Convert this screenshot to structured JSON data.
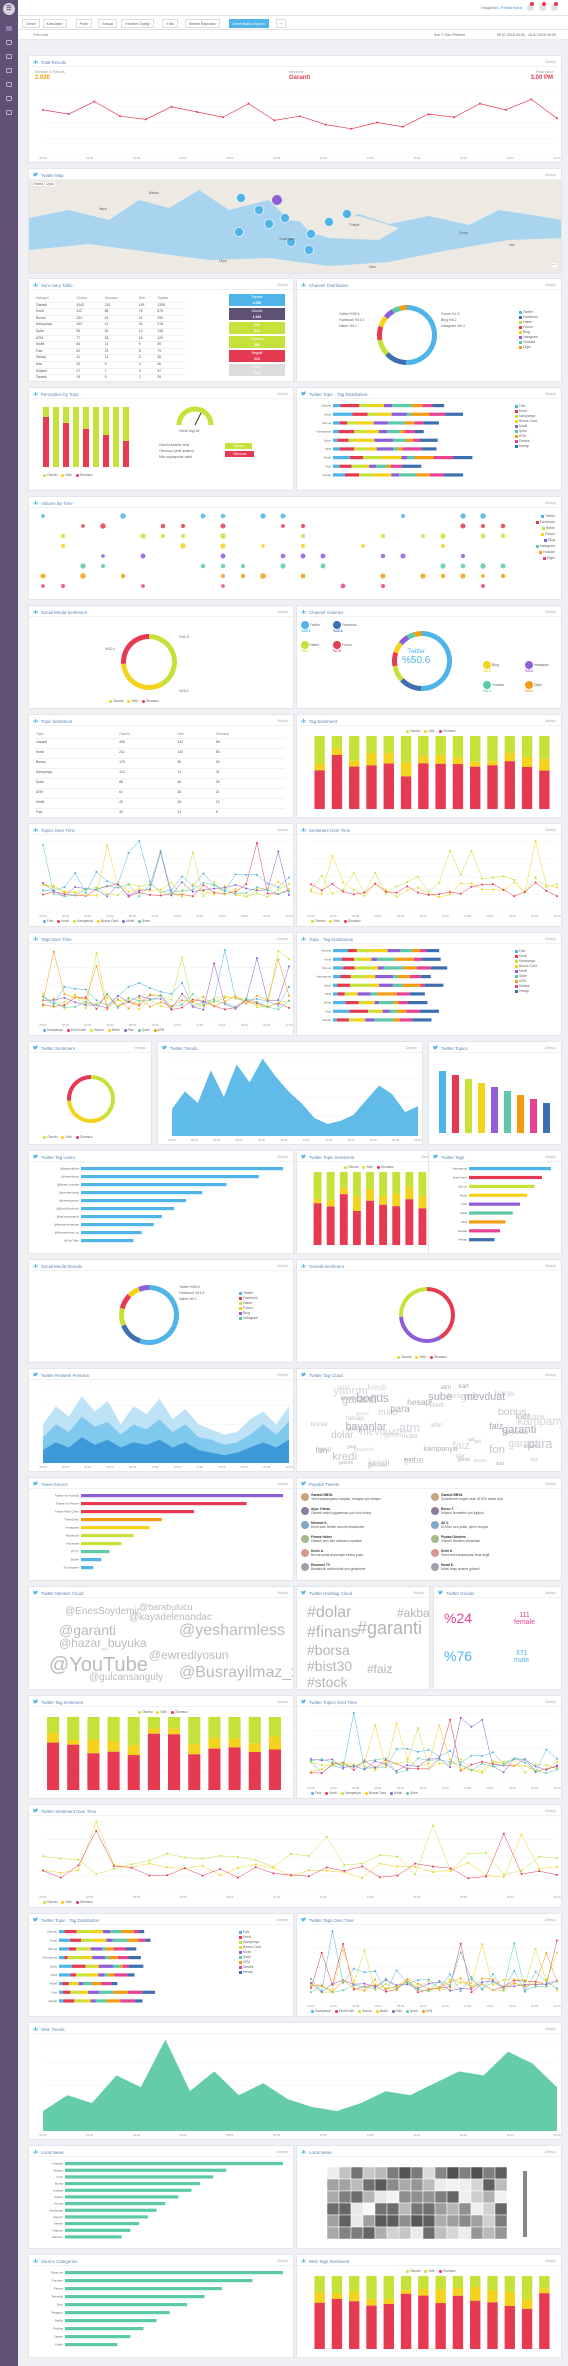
{
  "colors": {
    "accent": "#4fb4e7",
    "kpi": "#f39c12",
    "red": "#e53a52",
    "lime": "#c6e23a",
    "yellow": "#f4d31c",
    "purple": "#8e5ed8",
    "teal": "#5cc9a7"
  },
  "topbar": {
    "user_prefix": "Hoşgeldin,",
    "user_name": "Ferhat Kara"
  },
  "tabs": [
    "Genel",
    "Karşılaştır",
    "Profil",
    "Sosyal",
    "Yönetim Grafiği",
    "Yıllık",
    "Sistem Raporları",
    "Genel Bakış Raporu"
  ],
  "filterbar": {
    "left": "Filter Add",
    "mid": "Son 7 Gün Filtreleri",
    "right": "09.07.2016 00:00 - 16.07.2016 00:00"
  },
  "panels": {
    "total_results": {
      "title": "Total Results",
      "action": "Detaylı"
    },
    "twitter_map": {
      "title": "Twitter Map",
      "action": "Detaylı"
    },
    "summary_table": {
      "title": "Sum mary Table",
      "action": "Detaylı"
    },
    "channel_distribution": {
      "title": "Channel Distribution",
      "action": "Detaylı"
    },
    "perception_topic": {
      "title": "Perception by Topic",
      "action": "Detaylı"
    },
    "twitter_topic_tag": {
      "title": "Twitter Topic - Tag Distribution",
      "action": "Detaylı"
    },
    "volume_time": {
      "title": "Volume By Time",
      "action": "Detaylı"
    },
    "social_sentiment": {
      "title": "Social Media Sentiment",
      "action": "Detaylı"
    },
    "channel_volumes": {
      "title": "Channel Volumes",
      "action": "Detaylı"
    },
    "topic_sentiment": {
      "title": "Topic Sentiment",
      "action": "Detaylı"
    },
    "tag_sentiment": {
      "title": "Tag Sentiment",
      "action": "Detaylı"
    },
    "topics_over_time": {
      "title": "Topics Over Time",
      "action": "Detaylı"
    },
    "sentiment_over_time": {
      "title": "Sentiment Over Time",
      "action": "Detaylı"
    },
    "tags_over_time": {
      "title": "Tags Over Time",
      "action": "Detaylı"
    },
    "topic_tag_dist": {
      "title": "Topic - Tag Distribution",
      "action": "Detaylı"
    },
    "twitter_sentiment": {
      "title": "Twitter Sentiment",
      "action": "Detaylı"
    },
    "twitter_trends": {
      "title": "Twitter Trends",
      "action": "Detaylı"
    },
    "twitter_topics": {
      "title": "Twitter Topics",
      "action": "Detaylı"
    },
    "twitter_tag_users": {
      "title": "Twitter Tag Users",
      "action": "Detaylı"
    },
    "twitter_topic_sentiment": {
      "title": "Twitter Topic Sentiment",
      "action": "Detaylı"
    },
    "twitter_tags": {
      "title": "Twitter Tags",
      "action": "Detaylı"
    },
    "social_results": {
      "title": "Social Media Results",
      "action": "Detaylı"
    },
    "overall_sentiment": {
      "title": "Overall Sentiment",
      "action": "Detaylı"
    },
    "twitter_persona": {
      "title": "Twitter Retweet Persona",
      "action": "Detaylı"
    },
    "twitter_tag_cloud": {
      "title": "Twitter Tag Cloud",
      "action": "Detaylı"
    },
    "tweet_source": {
      "title": "Tweet Source",
      "action": "Detaylı"
    },
    "popular_tweets": {
      "title": "Popular Tweets",
      "action": "Detaylı"
    },
    "twitter_mention_cloud": {
      "title": "Twitter Mention Cloud",
      "action": "Detaylı"
    },
    "twitter_hashtag_cloud": {
      "title": "Twitter Hashtag Cloud",
      "action": "Detaylı"
    },
    "twitter_gender": {
      "title": "Twitter Gender",
      "action": "Detaylı"
    },
    "twitter_tag_sentiment": {
      "title": "Twitter Tag Sentiment",
      "action": "Detaylı"
    },
    "twitter_topics_over_time": {
      "title": "Twitter Topics Over Time",
      "action": "Detaylı"
    },
    "twitter_sentiment_over_time": {
      "title": "Twitter Sentiment Over Time",
      "action": "Detaylı"
    },
    "twitter_topic_tag_dist": {
      "title": "Twitter Topic - Tag Distribution",
      "action": "Detaylı"
    },
    "twitter_tags_over_time": {
      "title": "Twitter Tags Over Time",
      "action": "Detaylı"
    },
    "web_trends": {
      "title": "Web Trends",
      "action": "Detaylı"
    },
    "local_news": {
      "title": "Local News",
      "action": "Detaylı"
    },
    "local_news_map": {
      "title": "Local News",
      "action": "Detaylı"
    },
    "source_categories": {
      "title": "Source Categories",
      "action": "Detaylı"
    },
    "web_tags_sentiment": {
      "title": "Web Tags Sentiment",
      "action": "Detaylı"
    }
  },
  "kpi": {
    "l1": "Number of Results",
    "v1": "2.020",
    "l2": "Keyword",
    "v2": "Garanti",
    "l3": "Peak Hour",
    "v3": "3.00 PM"
  },
  "map": {
    "modes": [
      "Harita",
      "Uydu"
    ],
    "labels": [
      "Balkan",
      "Türkiye",
      "İtalya",
      "Yunanistan",
      "Libya",
      "Mısır",
      "Suriye",
      "Irak"
    ]
  },
  "summary": {
    "headers": [
      "Kategori",
      "Olumlu",
      "Olumsuz",
      "Nötr",
      "Toplam"
    ],
    "rows": [
      [
        "Garanti",
        "1043",
        "210",
        "145",
        "1398"
      ],
      [
        "Kredi",
        "412",
        "88",
        "76",
        "576"
      ],
      [
        "Bonus",
        "234",
        "44",
        "21",
        "299"
      ],
      [
        "Kampanya",
        "163",
        "21",
        "34",
        "218"
      ],
      [
        "Şube",
        "96",
        "30",
        "12",
        "138"
      ],
      [
        "ATM",
        "77",
        "25",
        "18",
        "120"
      ],
      [
        "Mobil",
        "66",
        "14",
        "9",
        "89"
      ],
      [
        "Faiz",
        "52",
        "19",
        "8",
        "79"
      ],
      [
        "Hesap",
        "41",
        "11",
        "6",
        "58"
      ],
      [
        "Kart",
        "33",
        "9",
        "4",
        "46"
      ],
      [
        "Müşteri",
        "27",
        "7",
        "3",
        "37"
      ],
      [
        "Destek",
        "19",
        "5",
        "2",
        "26"
      ]
    ],
    "boxes": [
      {
        "t": "Toplam",
        "v": "2.020",
        "c": "#4fb4e7"
      },
      {
        "t": "Olumlu",
        "v": "1.043",
        "c": "#5e5174"
      },
      {
        "t": "Nötr",
        "v": "612",
        "c": "#c6e23a"
      },
      {
        "t": "Olumsuz",
        "v": "365",
        "c": "#c6e23a"
      },
      {
        "t": "Negatif",
        "v": "210",
        "c": "#e53a52"
      },
      {
        "t": "Oran",
        "v": "%18",
        "c": "#ddd"
      }
    ]
  },
  "channel": {
    "legend": [
      "Twitter",
      "Facebook",
      "Haber",
      "Forum",
      "Blog",
      "Instagram",
      "Youtube",
      "Diğer"
    ],
    "left_labels": [
      "Twitter %50.6",
      "Facebook %12.4",
      "Haber %9.1"
    ],
    "right_labels": [
      "Forum %7.8",
      "Blog %6.2",
      "Instagram %5.4"
    ]
  },
  "perception": {
    "gauge_label": "Genel Algı",
    "gauge_value": "64",
    "note_rows": [
      "Olumlu ifadeler artış",
      "Olumsuz içerik azalmış",
      "Nötr paylaşımlar sabit"
    ],
    "btns": [
      "Olumlu",
      "Olumsuz"
    ],
    "legend": [
      "Olumlu",
      "Nötr",
      "Olumsuz"
    ]
  },
  "topic_tag": {
    "categories": [
      "Garanti",
      "Kredi",
      "Bonus",
      "Kampanya",
      "Şube",
      "ATM",
      "Mobil",
      "Faiz",
      "Hesap"
    ],
    "legend": [
      "Faiz",
      "Kredi",
      "Kampanya",
      "Bonus Card",
      "Mobil",
      "Şube",
      "ATM",
      "Destek",
      "Hesap"
    ]
  },
  "volume": {
    "cats": [
      "Twitter",
      "Facebook",
      "Haber",
      "Forum",
      "Blog",
      "Instagram",
      "Youtube",
      "Diğer"
    ]
  },
  "sentiment": {
    "labels": [
      "%41.5",
      "%32.4",
      "%26.1"
    ],
    "legend": [
      "Olumlu",
      "Nötr",
      "Olumsuz"
    ]
  },
  "channels2": {
    "items": [
      [
        "Twitter",
        "%50.6"
      ],
      [
        "Facebook",
        "%12.4"
      ],
      [
        "Haber",
        "%9.1"
      ],
      [
        "Forum",
        "%7.8"
      ],
      [
        "Blog",
        "%6.2"
      ],
      [
        "Instagram",
        "%5.4"
      ],
      [
        "Youtube",
        "%4.3"
      ],
      [
        "Diğer",
        "%4.2"
      ]
    ],
    "center": "Twitter",
    "center_val": "%50.6"
  },
  "topic_sent": {
    "headers": [
      "Topic",
      "Olumlu",
      "Nötr",
      "Olumsuz"
    ],
    "rows": [
      [
        "Garanti",
        "456",
        "312",
        "98"
      ],
      [
        "Kredi",
        "211",
        "134",
        "55"
      ],
      [
        "Bonus",
        "178",
        "96",
        "40"
      ],
      [
        "Kampanya",
        "122",
        "74",
        "31"
      ],
      [
        "Şube",
        "88",
        "46",
        "28"
      ],
      [
        "ATM",
        "61",
        "38",
        "21"
      ],
      [
        "Mobil",
        "49",
        "28",
        "13"
      ],
      [
        "Faiz",
        "33",
        "21",
        "8"
      ]
    ]
  },
  "stacked_legend": [
    "Olumlu",
    "Nötr",
    "Olumsuz"
  ],
  "gender": {
    "f_pct": "%24",
    "f_val": "111",
    "f_lbl": "female",
    "m_pct": "%76",
    "m_val": "371",
    "m_lbl": "male"
  },
  "tweets": [
    {
      "u": "Garanti BBVA",
      "t": "Yeni kampanyamız başladı, detaylar için tıklayın"
    },
    {
      "u": "Ayşe Yılmaz",
      "t": "Garanti mobil uygulaması çok hızlı olmuş"
    },
    {
      "u": "Mehmet K.",
      "t": "Kredi kartı limitim artırıldı teşekkürler"
    },
    {
      "u": "Finans Haber",
      "t": "Garanti yeni faiz oranlarını açıkladı"
    },
    {
      "u": "Deniz A.",
      "t": "Bonus kartla alışverişte ekstra puan"
    },
    {
      "u": "Ekonomi TV",
      "t": "Bankacılık sektöründe son gelişmeler"
    }
  ],
  "tweets2": [
    {
      "u": "Garanti BBVA",
      "t": "Şubelerimiz bugün saat 18:00'e kadar açık"
    },
    {
      "u": "Burcu T.",
      "t": "Müşteri hizmetleri çok ilgiliydi"
    },
    {
      "u": "Ali V.",
      "t": "ATM'de sıra yoktu, işlem hızlıydı"
    },
    {
      "u": "Piyasa Gündem",
      "t": "Garanti hisseleri yükselişte"
    },
    {
      "u": "Selin K.",
      "t": "Yeni kredi kampanyası fena değil"
    },
    {
      "u": "Murat E.",
      "t": "Mobil onay sistemi güvenli"
    }
  ],
  "mentions": [
    "@EnesSoydemir",
    "@kayadelenandac",
    "@garanti",
    "@yesharmless",
    "@hazar_buyuka",
    "@ewrediyosun",
    "@YouTube",
    "@Busrayilmaz_xp",
    "@gulcansanguly",
    "@barabulucu"
  ],
  "hashtags": [
    "#dolar",
    "#finans",
    "#garanti",
    "#borsa",
    "#bist30",
    "#akbank",
    "#stock",
    "#faiz"
  ],
  "source_list": [
    "Twitter for Android",
    "Twitter for iPhone",
    "Twitter Web Client",
    "TweetDeck",
    "Instagram",
    "Facebook",
    "Hootsuite",
    "IFTTT",
    "Buffer",
    "Foursquare"
  ],
  "tag_users": [
    "@garantibbva",
    "@barabulucu",
    "@hazar_buyuka",
    "@yesharmless",
    "@ewrediyosun",
    "@EnesSoydemir",
    "@gulcansanguly",
    "@kayadelenandac",
    "@Busrayilmaz_xp",
    "@YouTube"
  ],
  "tw_tags": [
    "Kampanya",
    "Kredi Kartı",
    "Bonus",
    "Mobil",
    "Faiz",
    "Şube",
    "ATM",
    "Destek",
    "Hesap"
  ],
  "local_news": [
    "İstanbul",
    "Ankara",
    "İzmir",
    "Bursa",
    "Antalya",
    "Adana",
    "Konya",
    "Gaziantep",
    "Kayseri",
    "Mersin",
    "Trabzon",
    "Samsun"
  ],
  "source_cats": [
    "Ekonomi",
    "Gündem",
    "Finans",
    "Teknoloji",
    "Spor",
    "Magazin",
    "Sağlık",
    "Politika",
    "Yaşam",
    "Kültür"
  ],
  "time_labels": [
    "00:00",
    "02:00",
    "04:00",
    "06:00",
    "08:00",
    "10:00",
    "12:00",
    "14:00",
    "16:00",
    "18:00",
    "20:00",
    "22:00"
  ],
  "chart_data": [
    {
      "type": "line",
      "title": "Total Results",
      "y": [
        42,
        38,
        50,
        36,
        33,
        45,
        40,
        35,
        48,
        32,
        36,
        28,
        24,
        30,
        26,
        38,
        35,
        48,
        42,
        52,
        34
      ],
      "ylim": [
        0,
        60
      ]
    },
    {
      "type": "area",
      "title": "Twitter Trends",
      "y": [
        18,
        30,
        22,
        44,
        26,
        48,
        36,
        52,
        40,
        30,
        22,
        12,
        8,
        10,
        14,
        24,
        34,
        28,
        16,
        20
      ]
    },
    {
      "type": "area",
      "title": "Web Trends",
      "y": [
        10,
        18,
        14,
        28,
        22,
        46,
        20,
        30,
        18,
        24,
        16,
        12,
        10,
        14,
        20,
        18,
        24,
        30,
        28,
        40,
        34,
        22
      ]
    }
  ]
}
